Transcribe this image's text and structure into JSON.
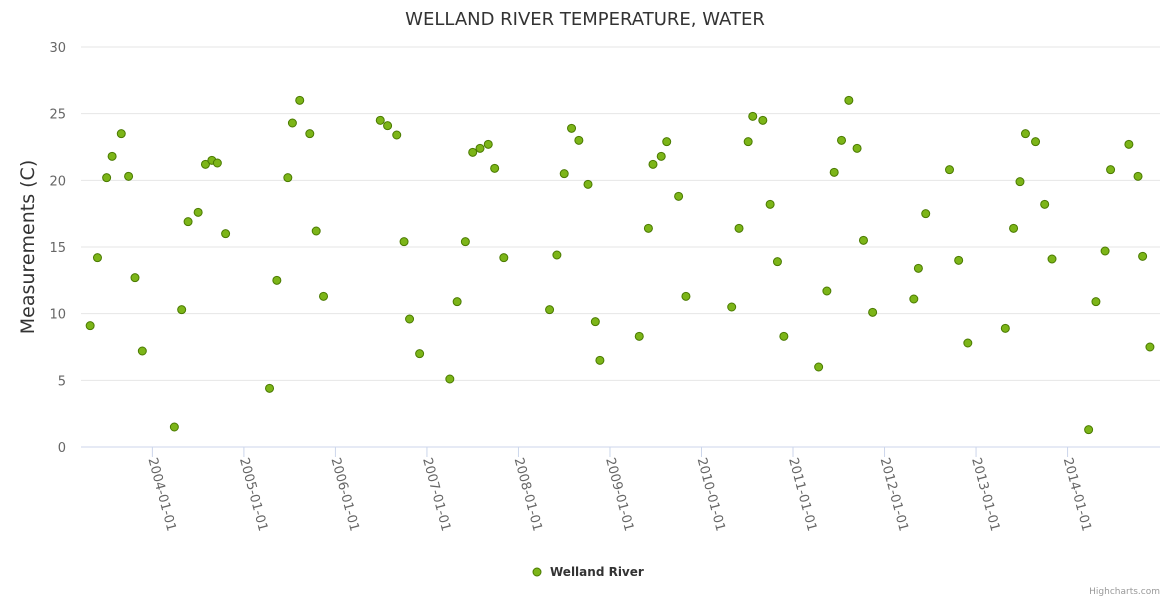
{
  "chart_data": {
    "type": "scatter",
    "title": "WELLAND RIVER TEMPERATURE, WATER",
    "xlabel": "",
    "ylabel": "Measurements (C)",
    "ylim": [
      0,
      30
    ],
    "yticks": [
      "0",
      "5",
      "10",
      "15",
      "20",
      "25",
      "30"
    ],
    "xlim": [
      2003.22,
      2015.01
    ],
    "xticks": [
      {
        "label": "2004-01-01",
        "x": 2004
      },
      {
        "label": "2005-01-01",
        "x": 2005
      },
      {
        "label": "2006-01-01",
        "x": 2006
      },
      {
        "label": "2007-01-01",
        "x": 2007
      },
      {
        "label": "2008-01-01",
        "x": 2008
      },
      {
        "label": "2009-01-01",
        "x": 2009
      },
      {
        "label": "2010-01-01",
        "x": 2010
      },
      {
        "label": "2011-01-01",
        "x": 2011
      },
      {
        "label": "2012-01-01",
        "x": 2012
      },
      {
        "label": "2013-01-01",
        "x": 2013
      },
      {
        "label": "2014-01-01",
        "x": 2014
      }
    ],
    "grid": true,
    "legend_position": "bottom-center",
    "series": [
      {
        "name": "Welland River",
        "color": "#7cb518",
        "points": [
          [
            2003.32,
            9.1
          ],
          [
            2003.4,
            14.2
          ],
          [
            2003.5,
            20.2
          ],
          [
            2003.56,
            21.8
          ],
          [
            2003.66,
            23.5
          ],
          [
            2003.74,
            20.3
          ],
          [
            2003.81,
            12.7
          ],
          [
            2003.89,
            7.2
          ],
          [
            2004.24,
            1.5
          ],
          [
            2004.32,
            10.3
          ],
          [
            2004.39,
            16.9
          ],
          [
            2004.5,
            17.6
          ],
          [
            2004.58,
            21.2
          ],
          [
            2004.65,
            21.5
          ],
          [
            2004.71,
            21.3
          ],
          [
            2004.8,
            16.0
          ],
          [
            2005.28,
            4.4
          ],
          [
            2005.36,
            12.5
          ],
          [
            2005.48,
            20.2
          ],
          [
            2005.53,
            24.3
          ],
          [
            2005.61,
            26.0
          ],
          [
            2005.72,
            23.5
          ],
          [
            2005.79,
            16.2
          ],
          [
            2005.87,
            11.3
          ],
          [
            2006.49,
            24.5
          ],
          [
            2006.57,
            24.1
          ],
          [
            2006.67,
            23.4
          ],
          [
            2006.75,
            15.4
          ],
          [
            2006.81,
            9.6
          ],
          [
            2006.92,
            7.0
          ],
          [
            2007.25,
            5.1
          ],
          [
            2007.33,
            10.9
          ],
          [
            2007.42,
            15.4
          ],
          [
            2007.5,
            22.1
          ],
          [
            2007.58,
            22.4
          ],
          [
            2007.67,
            22.7
          ],
          [
            2007.74,
            20.9
          ],
          [
            2007.84,
            14.2
          ],
          [
            2008.34,
            10.3
          ],
          [
            2008.42,
            14.4
          ],
          [
            2008.5,
            20.5
          ],
          [
            2008.58,
            23.9
          ],
          [
            2008.66,
            23.0
          ],
          [
            2008.76,
            19.7
          ],
          [
            2008.84,
            9.4
          ],
          [
            2008.89,
            6.5
          ],
          [
            2009.32,
            8.3
          ],
          [
            2009.42,
            16.4
          ],
          [
            2009.47,
            21.2
          ],
          [
            2009.56,
            21.8
          ],
          [
            2009.62,
            22.9
          ],
          [
            2009.75,
            18.8
          ],
          [
            2009.83,
            11.3
          ],
          [
            2010.33,
            10.5
          ],
          [
            2010.41,
            16.4
          ],
          [
            2010.51,
            22.9
          ],
          [
            2010.56,
            24.8
          ],
          [
            2010.67,
            24.5
          ],
          [
            2010.75,
            18.2
          ],
          [
            2010.83,
            13.9
          ],
          [
            2010.9,
            8.3
          ],
          [
            2011.28,
            6.0
          ],
          [
            2011.37,
            11.7
          ],
          [
            2011.45,
            20.6
          ],
          [
            2011.53,
            23.0
          ],
          [
            2011.61,
            26.0
          ],
          [
            2011.7,
            22.4
          ],
          [
            2011.77,
            15.5
          ],
          [
            2011.87,
            10.1
          ],
          [
            2012.32,
            11.1
          ],
          [
            2012.37,
            13.4
          ],
          [
            2012.45,
            17.5
          ],
          [
            2012.71,
            20.8
          ],
          [
            2012.81,
            14.0
          ],
          [
            2012.91,
            7.8
          ],
          [
            2013.32,
            8.9
          ],
          [
            2013.41,
            16.4
          ],
          [
            2013.48,
            19.9
          ],
          [
            2013.54,
            23.5
          ],
          [
            2013.65,
            22.9
          ],
          [
            2013.75,
            18.2
          ],
          [
            2013.83,
            14.1
          ],
          [
            2014.23,
            1.3
          ],
          [
            2014.31,
            10.9
          ],
          [
            2014.41,
            14.7
          ],
          [
            2014.47,
            20.8
          ],
          [
            2014.67,
            22.7
          ],
          [
            2014.77,
            20.3
          ],
          [
            2014.82,
            14.3
          ],
          [
            2014.9,
            7.5
          ]
        ]
      }
    ]
  },
  "credit": "Highcharts.com"
}
